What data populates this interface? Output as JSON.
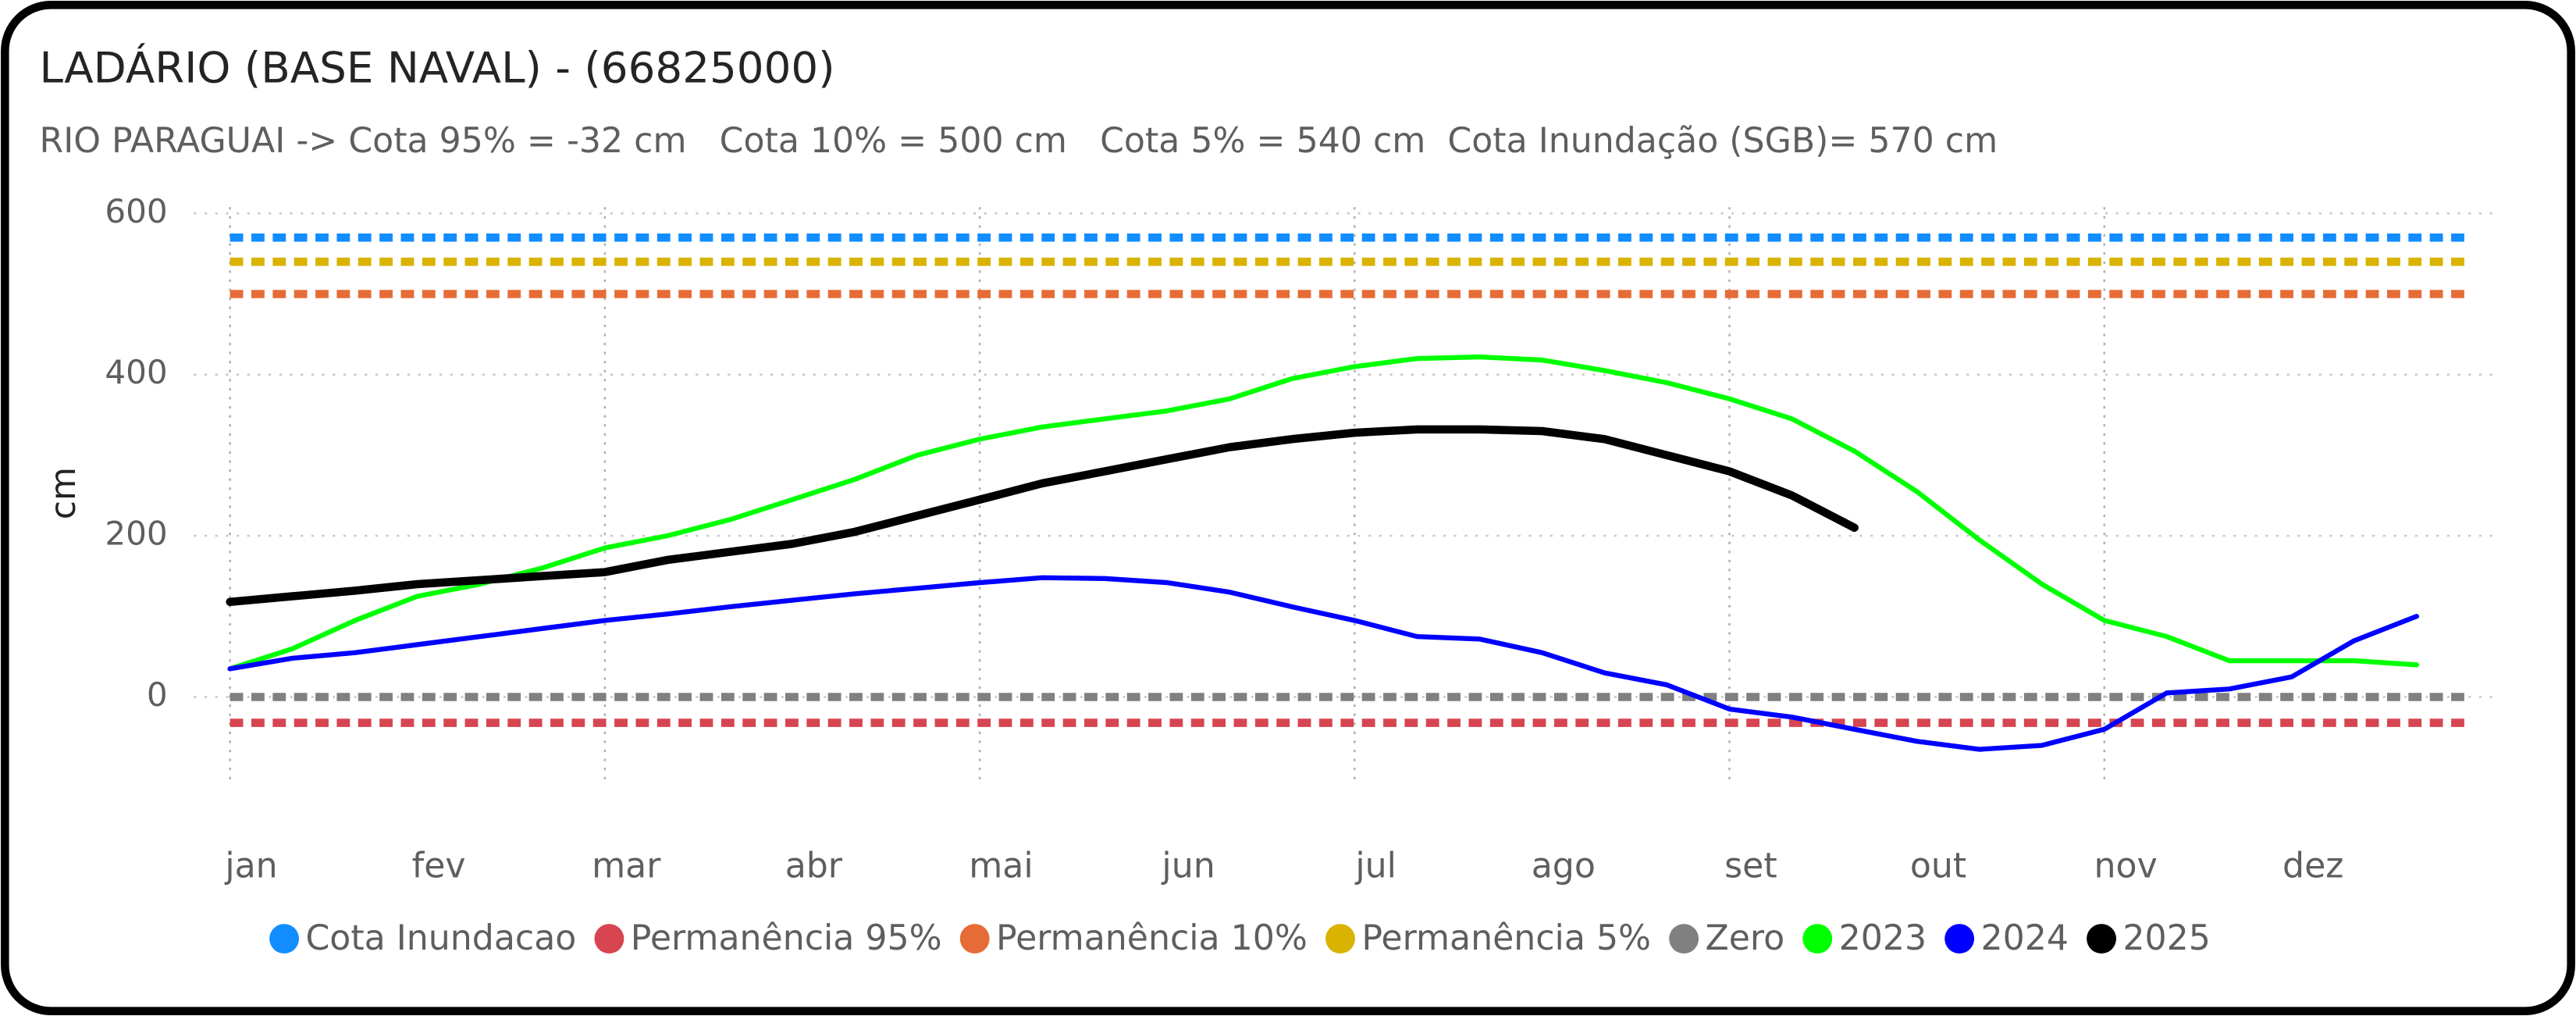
{
  "chart_data": {
    "type": "line",
    "title": "LADÁRIO (BASE NAVAL) - (66825000)",
    "subtitle": "RIO PARAGUAI -> Cota 95% = -32 cm   Cota 10% = 500 cm   Cota 5% = 540 cm  Cota Inundação (SGB)= 570 cm",
    "y_label": "cm",
    "categories": [
      "jan",
      null,
      null,
      "fev",
      null,
      null,
      "mar",
      null,
      null,
      "abr",
      null,
      null,
      "mai",
      null,
      null,
      "jun",
      null,
      null,
      "jul",
      null,
      null,
      "ago",
      null,
      null,
      "set",
      null,
      null,
      "out",
      null,
      null,
      "nov",
      null,
      null,
      "dez",
      null,
      null
    ],
    "ylim": [
      -100,
      620
    ],
    "yticks": [
      0,
      200,
      400,
      600
    ],
    "grid": true,
    "series": [
      {
        "name": "Cota Inundacao",
        "color": "#118dff",
        "value": 570
      },
      {
        "name": "Permanência 95%",
        "color": "#d64550",
        "value": -32
      },
      {
        "name": "Permanência 10%",
        "color": "#e66c37",
        "value": 500
      },
      {
        "name": "Permanência 5%",
        "color": "#d9b300",
        "value": 540
      },
      {
        "name": "Zero",
        "color": "#808080",
        "value": 0
      },
      {
        "name": "2023",
        "color": "#00ff00",
        "values": [
          35,
          60,
          95,
          125,
          140,
          160,
          185,
          200,
          220,
          245,
          270,
          300,
          320,
          335,
          345,
          355,
          370,
          395,
          410,
          420,
          422,
          418,
          405,
          390,
          370,
          345,
          305,
          255,
          195,
          140,
          95,
          75,
          45,
          45,
          45,
          40
        ]
      },
      {
        "name": "2024",
        "color": "#0000ff",
        "values": [
          35,
          48,
          55,
          65,
          75,
          85,
          95,
          103,
          112,
          120,
          128,
          135,
          142,
          148,
          147,
          142,
          130,
          112,
          95,
          75,
          72,
          55,
          30,
          15,
          -15,
          -25,
          -40,
          -55,
          -65,
          -60,
          -40,
          5,
          10,
          25,
          70,
          100
        ]
      },
      {
        "name": "2025",
        "color": "#000000",
        "values": [
          118,
          125,
          132,
          140,
          145,
          150,
          155,
          170,
          180,
          190,
          205,
          225,
          245,
          265,
          280,
          295,
          310,
          320,
          328,
          332,
          332,
          330,
          320,
          300,
          280,
          250,
          210,
          null,
          null,
          null,
          null,
          null,
          null,
          null,
          null,
          null
        ]
      }
    ]
  }
}
